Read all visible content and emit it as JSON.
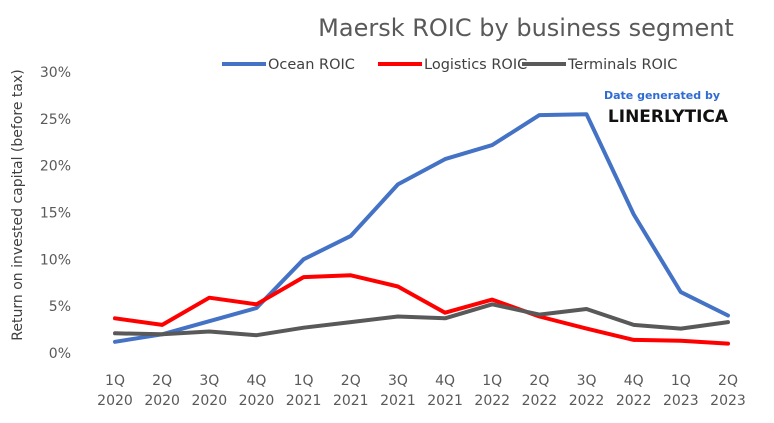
{
  "chart_data": {
    "type": "line",
    "title": "Maersk ROIC by business segment",
    "ylabel": "Return on invested capital (before tax)",
    "xlabel": "",
    "categories": [
      [
        "1Q",
        "2020"
      ],
      [
        "2Q",
        "2020"
      ],
      [
        "3Q",
        "2020"
      ],
      [
        "4Q",
        "2020"
      ],
      [
        "1Q",
        "2021"
      ],
      [
        "2Q",
        "2021"
      ],
      [
        "3Q",
        "2021"
      ],
      [
        "4Q",
        "2021"
      ],
      [
        "1Q",
        "2022"
      ],
      [
        "2Q",
        "2022"
      ],
      [
        "3Q",
        "2022"
      ],
      [
        "4Q",
        "2022"
      ],
      [
        "1Q",
        "2023"
      ],
      [
        "2Q",
        "2023"
      ]
    ],
    "ylim": [
      0,
      30
    ],
    "yticks": [
      "0%",
      "5%",
      "10%",
      "15%",
      "20%",
      "25%",
      "30%"
    ],
    "grid": false,
    "legend_position": "top",
    "series": [
      {
        "name": "Ocean ROIC",
        "color": "#4472c4",
        "values": [
          1.2,
          2.0,
          3.4,
          4.8,
          10.0,
          12.5,
          18.0,
          20.7,
          22.2,
          25.4,
          25.5,
          14.8,
          6.5,
          4.0
        ]
      },
      {
        "name": "Logistics ROIC",
        "color": "#ff0000",
        "values": [
          3.7,
          3.0,
          5.9,
          5.2,
          8.1,
          8.3,
          7.1,
          4.3,
          5.7,
          3.9,
          2.6,
          1.4,
          1.3,
          1.0
        ]
      },
      {
        "name": "Terminals ROIC",
        "color": "#595959",
        "values": [
          2.1,
          2.0,
          2.3,
          1.9,
          2.7,
          3.3,
          3.9,
          3.7,
          5.2,
          4.1,
          4.7,
          3.0,
          2.6,
          3.3
        ]
      }
    ]
  },
  "watermark": {
    "line1": "Date generated by",
    "line2": "LINERLYTICA"
  }
}
